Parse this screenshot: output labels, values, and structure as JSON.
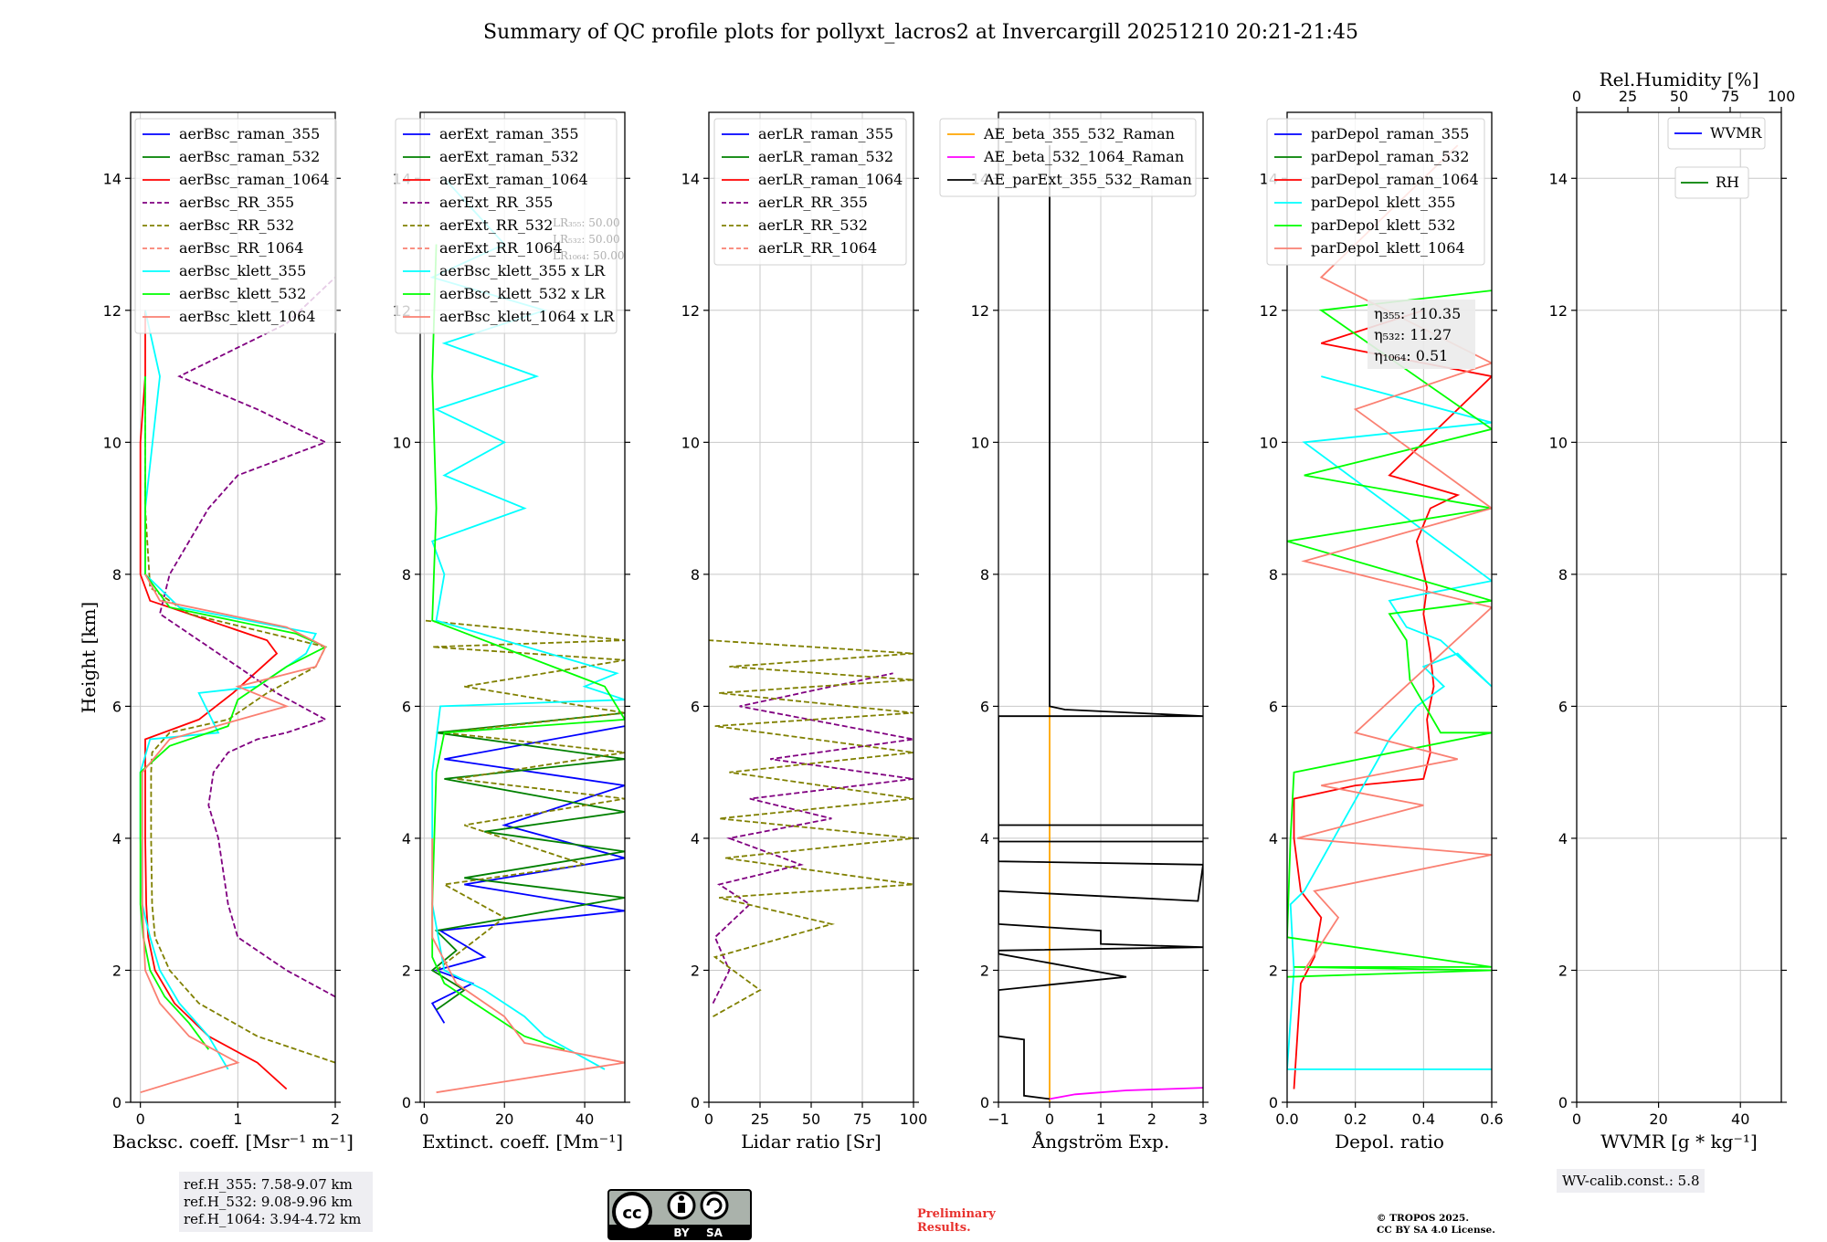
{
  "title": "Summary of QC profile plots for pollyxt_lacros2 at Invercargill 20251210 20:21-21:45",
  "ylabel": "Height [km]",
  "colors": {
    "c355": "#0000ff",
    "c532": "#008000",
    "c1064": "#ff0000",
    "rr355": "#800080",
    "rr532": "#808000",
    "rr1064": "#fa8072",
    "k355": "#00ffff",
    "k532": "#00ff00",
    "k1064": "#fa8072",
    "ae1": "#ffa500",
    "ae2": "#ff00ff",
    "ae3": "#000000"
  },
  "chart_data": [
    {
      "type": "line",
      "id": "bsc",
      "xlabel": "Backsc. coeff. [Msr⁻¹ m⁻¹]",
      "xlim": [
        -0.1,
        2.0
      ],
      "ylim": [
        0,
        15
      ],
      "xticks": [
        0,
        1,
        2
      ],
      "yticks": [
        0,
        2,
        4,
        6,
        8,
        10,
        12,
        14
      ],
      "legend": [
        "aerBsc_raman_355",
        "aerBsc_raman_532",
        "aerBsc_raman_1064",
        "aerBsc_RR_355",
        "aerBsc_RR_532",
        "aerBsc_RR_1064",
        "aerBsc_klett_355",
        "aerBsc_klett_532",
        "aerBsc_klett_1064"
      ],
      "series": [
        {
          "name": "aerBsc_raman_1064",
          "color": "c1064",
          "dash": false,
          "x": [
            1.5,
            1.2,
            0.7,
            0.35,
            0.15,
            0.08,
            0.06,
            0.05,
            0.05,
            0.05,
            0.6,
            0.95,
            1.4,
            1.3,
            0.5,
            0.1,
            0.0,
            0.0,
            0.0,
            0.05,
            0.05
          ],
          "y": [
            0.2,
            0.6,
            1.0,
            1.5,
            2.0,
            2.5,
            3.0,
            4.0,
            5.0,
            5.5,
            5.8,
            6.2,
            6.8,
            7.0,
            7.4,
            7.6,
            8.0,
            9.0,
            10.0,
            11.0,
            12.0
          ]
        },
        {
          "name": "aerBsc_RR_355",
          "color": "rr355",
          "dash": true,
          "x": [
            2.0,
            1.5,
            1.0,
            0.9,
            0.8,
            0.7,
            0.75,
            0.9,
            1.2,
            1.5,
            1.9,
            1.4,
            0.6,
            0.2,
            0.3,
            0.7,
            1.0,
            1.9,
            1.2,
            0.4,
            1.5,
            2.0
          ],
          "y": [
            1.6,
            2.0,
            2.5,
            3.0,
            4.0,
            4.5,
            5.0,
            5.3,
            5.5,
            5.6,
            5.8,
            6.2,
            7.0,
            7.4,
            8.0,
            9.0,
            9.5,
            10.0,
            10.5,
            11.0,
            11.8,
            12.5
          ]
        },
        {
          "name": "aerBsc_RR_532",
          "color": "rr532",
          "dash": true,
          "x": [
            2.0,
            1.2,
            0.6,
            0.3,
            0.15,
            0.12,
            0.11,
            0.11,
            0.12,
            0.3,
            0.9,
            1.3,
            1.8,
            1.9,
            0.5,
            0.1,
            0.05,
            0.05
          ],
          "y": [
            0.6,
            1.0,
            1.5,
            2.0,
            2.5,
            3.0,
            4.0,
            5.0,
            5.3,
            5.6,
            5.8,
            6.2,
            6.6,
            6.9,
            7.4,
            7.8,
            9.0,
            11.0
          ]
        },
        {
          "name": "aerBsc_klett_355",
          "color": "k355",
          "dash": false,
          "x": [
            0.9,
            0.7,
            0.4,
            0.2,
            0.1,
            0.05,
            0.02,
            0.0,
            0.0,
            0.1,
            0.8,
            0.6,
            1.2,
            1.7,
            1.8,
            0.4,
            0.05,
            0.05,
            0.2,
            0.05
          ],
          "y": [
            0.5,
            1.0,
            1.5,
            2.0,
            2.5,
            2.8,
            3.0,
            4.0,
            5.0,
            5.5,
            5.6,
            6.2,
            6.3,
            6.8,
            7.1,
            7.5,
            8.0,
            9.0,
            11.0,
            12.0
          ]
        },
        {
          "name": "aerBsc_klett_532",
          "color": "k532",
          "dash": false,
          "x": [
            0.7,
            0.5,
            0.25,
            0.1,
            0.03,
            0.0,
            0.0,
            0.3,
            0.9,
            1.0,
            1.5,
            1.9,
            1.6,
            0.3,
            0.05,
            0.05
          ],
          "y": [
            0.8,
            1.2,
            1.6,
            2.0,
            2.5,
            3.0,
            5.0,
            5.4,
            5.7,
            6.1,
            6.6,
            6.9,
            7.1,
            7.5,
            8.0,
            11.0
          ]
        },
        {
          "name": "aerBsc_klett_1064",
          "color": "k1064",
          "dash": false,
          "x": [
            0.0,
            1.0,
            0.5,
            0.2,
            0.05,
            0.02,
            0.02,
            0.3,
            1.5,
            1.0,
            1.8,
            1.9,
            1.5,
            0.2,
            0.05
          ],
          "y": [
            0.15,
            0.6,
            1.0,
            1.5,
            2.0,
            3.0,
            5.0,
            5.5,
            6.0,
            6.3,
            6.6,
            6.9,
            7.2,
            7.6,
            8.0
          ]
        }
      ],
      "note": [
        "ref.H_355: 7.58-9.07 km",
        "ref.H_532: 9.08-9.96 km",
        "ref.H_1064: 3.94-4.72 km"
      ]
    },
    {
      "type": "line",
      "id": "ext",
      "xlabel": "Extinct. coeff. [Mm⁻¹]",
      "xlim": [
        -1,
        50
      ],
      "ylim": [
        0,
        15
      ],
      "xticks": [
        0,
        20,
        40
      ],
      "yticks": [
        0,
        2,
        4,
        6,
        8,
        10,
        12,
        14
      ],
      "legend": [
        "aerExt_raman_355",
        "aerExt_raman_532",
        "aerExt_raman_1064",
        "aerExt_RR_355",
        "aerExt_RR_532",
        "aerExt_RR_1064",
        "aerBsc_klett_355 x LR",
        "aerBsc_klett_532 x LR",
        "aerBsc_klett_1064 x LR"
      ],
      "lrbox": [
        "LR₃₅₅: 50.00",
        "LR₅₃₂: 50.00",
        "LR₁₀₆₄: 50.00"
      ],
      "series": [
        {
          "name": "aerExt_raman_355",
          "color": "c355",
          "dash": false,
          "x": [
            5,
            2,
            12,
            3,
            15,
            4,
            50,
            10,
            50,
            20,
            50,
            5,
            50
          ],
          "y": [
            1.2,
            1.5,
            1.8,
            2.0,
            2.2,
            2.6,
            2.9,
            3.3,
            3.7,
            4.2,
            4.8,
            5.2,
            5.7
          ]
        },
        {
          "name": "aerExt_raman_532",
          "color": "c532",
          "dash": false,
          "x": [
            3,
            10,
            2,
            8,
            3,
            50,
            10,
            50,
            15,
            50,
            5,
            50,
            3,
            50
          ],
          "y": [
            1.4,
            1.7,
            2.0,
            2.3,
            2.6,
            3.1,
            3.4,
            3.8,
            4.1,
            4.4,
            4.9,
            5.2,
            5.6,
            5.9
          ]
        },
        {
          "name": "aerExt_RR_532",
          "color": "rr532",
          "dash": true,
          "x": [
            3,
            20,
            5,
            40,
            10,
            50,
            8,
            50,
            5,
            50,
            10,
            50,
            2,
            50,
            0
          ],
          "y": [
            2.0,
            2.8,
            3.3,
            3.6,
            4.2,
            4.6,
            4.9,
            5.3,
            5.6,
            5.9,
            6.3,
            6.7,
            6.9,
            7.0,
            7.3
          ]
        },
        {
          "name": "aerBsc_klett_355 x LR",
          "color": "k355",
          "dash": false,
          "x": [
            45,
            30,
            25,
            15,
            5,
            2,
            2,
            3,
            4,
            50,
            40,
            48,
            3,
            5,
            2,
            25,
            5,
            20,
            3,
            28,
            5,
            30,
            2,
            20,
            5
          ],
          "y": [
            0.5,
            1.0,
            1.3,
            1.7,
            2.0,
            3.0,
            5.0,
            5.5,
            6.0,
            6.1,
            6.3,
            6.5,
            7.3,
            8.0,
            8.5,
            9.0,
            9.5,
            10.0,
            10.5,
            11.0,
            11.5,
            12.0,
            12.5,
            13.0,
            14.0
          ]
        },
        {
          "name": "aerBsc_klett_532 x LR",
          "color": "k532",
          "dash": false,
          "x": [
            35,
            25,
            15,
            5,
            2,
            2,
            3,
            5,
            50,
            45,
            2,
            3,
            2,
            3
          ],
          "y": [
            0.8,
            1.0,
            1.4,
            1.8,
            2.2,
            3.0,
            5.0,
            5.6,
            5.8,
            6.3,
            7.3,
            9.0,
            11.0,
            13.0
          ]
        },
        {
          "name": "aerBsc_klett_1064 x LR",
          "color": "k1064",
          "dash": false,
          "x": [
            3,
            50,
            25,
            20,
            8,
            2,
            2
          ],
          "y": [
            0.15,
            0.6,
            0.9,
            1.3,
            1.8,
            2.5,
            4.0
          ]
        }
      ]
    },
    {
      "type": "line",
      "id": "lr",
      "xlabel": "Lidar ratio [Sr]",
      "xlim": [
        0,
        100
      ],
      "ylim": [
        0,
        15
      ],
      "xticks": [
        0,
        25,
        50,
        75,
        100
      ],
      "yticks": [
        0,
        2,
        4,
        6,
        8,
        10,
        12,
        14
      ],
      "legend": [
        "aerLR_raman_355",
        "aerLR_raman_532",
        "aerLR_raman_1064",
        "aerLR_RR_355",
        "aerLR_RR_532",
        "aerLR_RR_1064"
      ],
      "series": [
        {
          "name": "aerLR_RR_355",
          "color": "rr355",
          "dash": true,
          "x": [
            2,
            10,
            3,
            20,
            5,
            45,
            10,
            60,
            20,
            100,
            30,
            100,
            15,
            90
          ],
          "y": [
            1.5,
            2.0,
            2.5,
            3.0,
            3.3,
            3.6,
            4.0,
            4.3,
            4.6,
            4.9,
            5.2,
            5.5,
            6.0,
            6.5
          ]
        },
        {
          "name": "aerLR_RR_532",
          "color": "rr532",
          "dash": true,
          "x": [
            2,
            25,
            3,
            60,
            5,
            100,
            8,
            100,
            5,
            100,
            10,
            100,
            3,
            100,
            5,
            100,
            10,
            100,
            0
          ],
          "y": [
            1.3,
            1.7,
            2.2,
            2.7,
            3.1,
            3.3,
            3.7,
            4.0,
            4.3,
            4.6,
            5.0,
            5.3,
            5.7,
            5.9,
            6.2,
            6.4,
            6.6,
            6.8,
            7.0
          ]
        }
      ]
    },
    {
      "type": "line",
      "id": "ae",
      "xlabel": "Ångström Exp.",
      "xlim": [
        -1,
        3
      ],
      "ylim": [
        0,
        15
      ],
      "xticks": [
        -1,
        0,
        1,
        2,
        3
      ],
      "yticks": [
        0,
        2,
        4,
        6,
        8,
        10,
        12,
        14
      ],
      "legend": [
        "AE_beta_355_532_Raman",
        "AE_beta_532_1064_Raman",
        "AE_parExt_355_532_Raman"
      ],
      "series": [
        {
          "name": "AE_beta_355_532_Raman",
          "color": "ae1",
          "dash": false,
          "x": [
            0.0,
            0.0
          ],
          "y": [
            0.0,
            6.0
          ]
        },
        {
          "name": "AE_beta_532_1064_Raman",
          "color": "ae2",
          "dash": false,
          "x": [
            0.0,
            0.5,
            1.5,
            3.0
          ],
          "y": [
            0.05,
            0.12,
            0.18,
            0.22
          ]
        },
        {
          "name": "AE_parExt_355_532_Raman",
          "color": "ae3",
          "dash": false,
          "x": [
            0.0,
            0.0,
            0.3,
            3.0,
            -1.0,
            -1.0,
            3.0,
            -1.0,
            -1.0,
            3.0,
            -1.0,
            -1.0,
            3.0,
            2.9,
            -1.0,
            -1.0,
            1.0,
            1.0,
            3.0,
            -1.0,
            -1.0,
            1.5,
            -1.0,
            -1.0,
            -0.5,
            -0.5,
            0.0
          ],
          "y": [
            14.5,
            6.0,
            5.95,
            5.85,
            5.85,
            4.2,
            4.2,
            4.2,
            3.95,
            3.95,
            3.95,
            3.65,
            3.6,
            3.05,
            3.2,
            2.7,
            2.6,
            2.4,
            2.35,
            2.3,
            2.25,
            1.9,
            1.7,
            1.0,
            0.95,
            0.1,
            0.05
          ]
        }
      ]
    },
    {
      "type": "line",
      "id": "dep",
      "xlabel": "Depol. ratio",
      "xlim": [
        0,
        0.6
      ],
      "ylim": [
        0,
        15
      ],
      "xticks": [
        0.0,
        0.2,
        0.4,
        0.6
      ],
      "yticks": [
        0,
        2,
        4,
        6,
        8,
        10,
        12,
        14
      ],
      "legend": [
        "parDepol_raman_355",
        "parDepol_raman_532",
        "parDepol_raman_1064",
        "parDepol_klett_355",
        "parDepol_klett_532",
        "parDepol_klett_1064"
      ],
      "etabox": [
        "η₃₅₅: 110.35",
        "η₅₃₂: 11.27",
        "η₁₀₆₄: 0.51"
      ],
      "series": [
        {
          "name": "parDepol_raman_1064",
          "color": "c1064",
          "dash": false,
          "x": [
            0.02,
            0.03,
            0.04,
            0.08,
            0.1,
            0.04,
            0.02,
            0.02,
            0.2,
            0.4,
            0.42,
            0.41,
            0.43,
            0.42,
            0.41,
            0.4,
            0.41,
            0.38,
            0.42,
            0.5,
            0.3,
            0.6,
            0.1,
            0.4
          ],
          "y": [
            0.2,
            1.0,
            1.8,
            2.2,
            2.8,
            3.2,
            4.0,
            4.6,
            4.8,
            4.9,
            5.3,
            5.8,
            6.3,
            6.8,
            7.1,
            7.4,
            7.8,
            8.5,
            9.0,
            9.2,
            9.5,
            11.0,
            11.5,
            12.0
          ]
        },
        {
          "name": "parDepol_klett_355",
          "color": "k355",
          "dash": false,
          "x": [
            0.6,
            0.0,
            0.02,
            0.01,
            0.05,
            0.3,
            0.38,
            0.46,
            0.4,
            0.5,
            0.6,
            0.45,
            0.35,
            0.3,
            0.6,
            0.05,
            0.6,
            0.1
          ],
          "y": [
            0.5,
            0.5,
            2.0,
            3.0,
            3.2,
            5.5,
            6.0,
            6.3,
            6.6,
            6.8,
            6.3,
            7.0,
            7.2,
            7.6,
            7.9,
            10.0,
            10.3,
            11.0
          ]
        },
        {
          "name": "parDepol_klett_532",
          "color": "k532",
          "dash": false,
          "x": [
            0.0,
            0.6,
            0.02,
            0.6,
            0.0,
            0.01,
            0.02,
            0.6,
            0.45,
            0.36,
            0.35,
            0.3,
            0.6,
            0.0,
            0.6,
            0.05,
            0.6,
            0.1,
            0.6
          ],
          "y": [
            1.9,
            2.0,
            2.05,
            2.05,
            2.5,
            4.0,
            5.0,
            5.6,
            5.6,
            6.4,
            7.0,
            7.4,
            7.6,
            8.5,
            9.0,
            9.5,
            10.2,
            12.0,
            12.3
          ]
        },
        {
          "name": "parDepol_klett_1064",
          "color": "k1064",
          "dash": false,
          "x": [
            0.05,
            0.1,
            0.15,
            0.08,
            0.6,
            0.03,
            0.4,
            0.1,
            0.5,
            0.2,
            0.6,
            0.05,
            0.6,
            0.2,
            0.6,
            0.1,
            0.5
          ],
          "y": [
            2.0,
            2.4,
            2.8,
            3.2,
            3.75,
            4.0,
            4.5,
            4.8,
            5.2,
            5.6,
            7.5,
            8.2,
            9.0,
            10.5,
            11.2,
            12.5,
            14.5
          ]
        }
      ]
    },
    {
      "type": "line",
      "id": "wv",
      "xlabel": "WVMR [g * kg⁻¹]",
      "xlim": [
        0,
        50
      ],
      "ylim": [
        0,
        15
      ],
      "xticks": [
        0,
        20,
        40
      ],
      "yticks": [
        0,
        2,
        4,
        6,
        8,
        10,
        12,
        14
      ],
      "top_axis_label": "Rel.Humidity [%]",
      "top_xlim": [
        0,
        100
      ],
      "top_xticks": [
        0,
        25,
        50,
        75,
        100
      ],
      "legend": [
        "WVMR",
        "RH"
      ],
      "series": [],
      "note": [
        "WV-calib.const.: 5.8"
      ]
    }
  ],
  "footer": {
    "license_badge": [
      "BY",
      "SA"
    ],
    "preliminary": [
      "Preliminary",
      "Results."
    ],
    "copyright": [
      "© TROPOS 2025.",
      "CC BY SA 4.0 License."
    ]
  }
}
